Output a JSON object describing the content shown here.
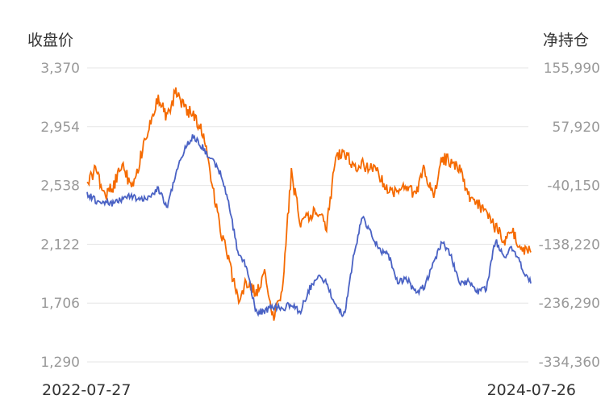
{
  "chart_data": {
    "type": "line",
    "left_axis_title": "收盘价",
    "right_axis_title": "净持仓",
    "left_ticks": [
      "3,370",
      "2,954",
      "2,538",
      "2,122",
      "1,706",
      "1,290"
    ],
    "right_ticks": [
      "155,990",
      "57,920",
      "-40,150",
      "-138,220",
      "-236,290",
      "-334,360"
    ],
    "ylim_left": [
      1290,
      3370
    ],
    "ylim_right": [
      -334360,
      155990
    ],
    "x_start_label": "2022-07-27",
    "x_end_label": "2024-07-26",
    "grid": true,
    "colors": {
      "close": "#4a62c4",
      "net": "#f56a00",
      "grid": "#e6e6e6"
    },
    "series": [
      {
        "axis": "left",
        "t": [
          0.0,
          0.02,
          0.04,
          0.06,
          0.08,
          0.1,
          0.12,
          0.14,
          0.16,
          0.18,
          0.2,
          0.22,
          0.24,
          0.26,
          0.28,
          0.3,
          0.32,
          0.34,
          0.36,
          0.38,
          0.4,
          0.42,
          0.44,
          0.46,
          0.48,
          0.5,
          0.52,
          0.54,
          0.56,
          0.58,
          0.6,
          0.62,
          0.64,
          0.66,
          0.68,
          0.7,
          0.72,
          0.74,
          0.76,
          0.78,
          0.8,
          0.82,
          0.84,
          0.86,
          0.88,
          0.9,
          0.92,
          0.94,
          0.96,
          0.98,
          1.0
        ],
        "values": [
          2480,
          2430,
          2420,
          2410,
          2445,
          2470,
          2430,
          2460,
          2520,
          2380,
          2620,
          2800,
          2890,
          2810,
          2720,
          2630,
          2400,
          2060,
          1960,
          1640,
          1650,
          1680,
          1665,
          1700,
          1640,
          1800,
          1900,
          1850,
          1680,
          1620,
          2020,
          2320,
          2200,
          2080,
          2040,
          1850,
          1880,
          1780,
          1820,
          1990,
          2140,
          2040,
          1840,
          1860,
          1780,
          1810,
          2150,
          2040,
          2100,
          1960,
          1850
        ]
      },
      {
        "axis": "right",
        "t": [
          0.0,
          0.02,
          0.04,
          0.06,
          0.08,
          0.1,
          0.12,
          0.14,
          0.16,
          0.18,
          0.2,
          0.22,
          0.24,
          0.26,
          0.28,
          0.3,
          0.32,
          0.34,
          0.36,
          0.38,
          0.4,
          0.42,
          0.44,
          0.46,
          0.48,
          0.5,
          0.52,
          0.54,
          0.56,
          0.58,
          0.6,
          0.62,
          0.64,
          0.66,
          0.68,
          0.7,
          0.72,
          0.74,
          0.76,
          0.78,
          0.8,
          0.82,
          0.84,
          0.86,
          0.88,
          0.9,
          0.92,
          0.94,
          0.96,
          0.98,
          1.0
        ],
        "values": [
          -40000,
          -10000,
          -60000,
          -40000,
          0,
          -50000,
          5000,
          60000,
          110000,
          70000,
          117000,
          88000,
          78000,
          50000,
          -30000,
          -110000,
          -170000,
          -230000,
          -200000,
          -220000,
          -190000,
          -260000,
          -210000,
          -20000,
          -100000,
          -95000,
          -80000,
          -110000,
          5000,
          15000,
          -10000,
          -5000,
          -10000,
          -25000,
          -50000,
          -50000,
          -40000,
          -55000,
          -10000,
          -60000,
          5000,
          0,
          -10000,
          -60000,
          -70000,
          -90000,
          -110000,
          -130000,
          -120000,
          -150000,
          -150000
        ]
      }
    ]
  }
}
